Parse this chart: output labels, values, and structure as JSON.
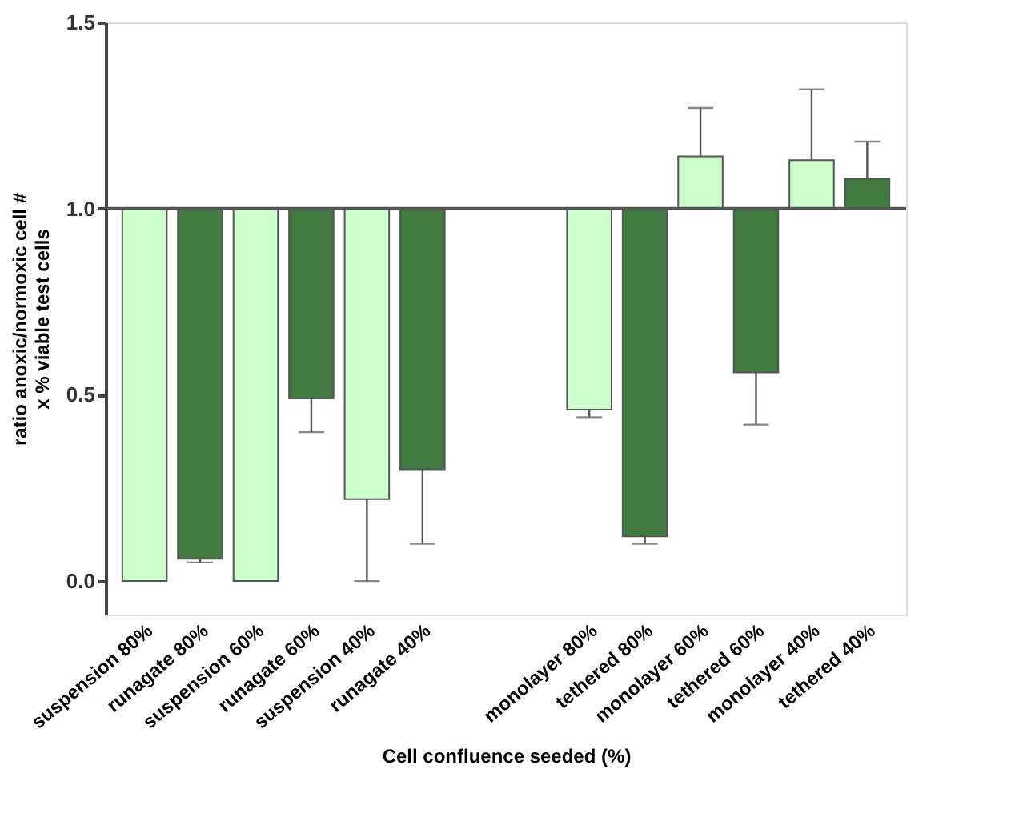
{
  "chart_data": {
    "type": "bar",
    "xlabel": "Cell confluence seeded (%)",
    "ylabel": "ratio anoxic/normoxic cell #\nx % viable test cells",
    "categories": [
      "suspension 80%",
      "runagate 80%",
      "suspension 60%",
      "runagate 60%",
      "suspension 40%",
      "runagate 40%",
      null,
      null,
      "monolayer 80%",
      "tethered 80%",
      "monolayer 60%",
      "tethered 60%",
      "monolayer 40%",
      "tethered 40%"
    ],
    "base": [
      1.0,
      1.0,
      1.0,
      1.0,
      1.0,
      1.0,
      null,
      null,
      1.0,
      1.0,
      1.0,
      1.0,
      1.0,
      1.0
    ],
    "values": [
      -1.0,
      -0.94,
      -1.0,
      -0.51,
      -0.78,
      -0.7,
      null,
      null,
      -0.54,
      -0.88,
      0.14,
      -0.44,
      0.13,
      0.08
    ],
    "errors": [
      null,
      [
        0.05,
        0.06
      ],
      null,
      [
        0.4,
        0.49
      ],
      [
        0.0,
        0.22
      ],
      [
        0.1,
        0.3
      ],
      null,
      null,
      [
        0.44,
        0.46
      ],
      [
        0.1,
        0.12
      ],
      [
        1.14,
        1.27
      ],
      [
        0.42,
        0.56
      ],
      [
        1.13,
        1.32
      ],
      [
        1.08,
        1.18
      ]
    ],
    "colors": [
      "#ccffcc",
      "#3f7a3f",
      "#ccffcc",
      "#3f7a3f",
      "#ccffcc",
      "#3f7a3f",
      null,
      null,
      "#ccffcc",
      "#3f7a3f",
      "#ccffcc",
      "#3f7a3f",
      "#ccffcc",
      "#3f7a3f"
    ],
    "ylim": [
      -0.09,
      1.5
    ],
    "yticks": [
      {
        "value": 0.0,
        "label": "0.0"
      },
      {
        "value": 0.5,
        "label": "0.5"
      },
      {
        "value": 1.0,
        "label": "1.0"
      },
      {
        "value": 1.5,
        "label": "1.5"
      }
    ],
    "ref_lines": [
      {
        "axis": "y",
        "value": 1.0,
        "label": null
      }
    ],
    "grid": false
  }
}
